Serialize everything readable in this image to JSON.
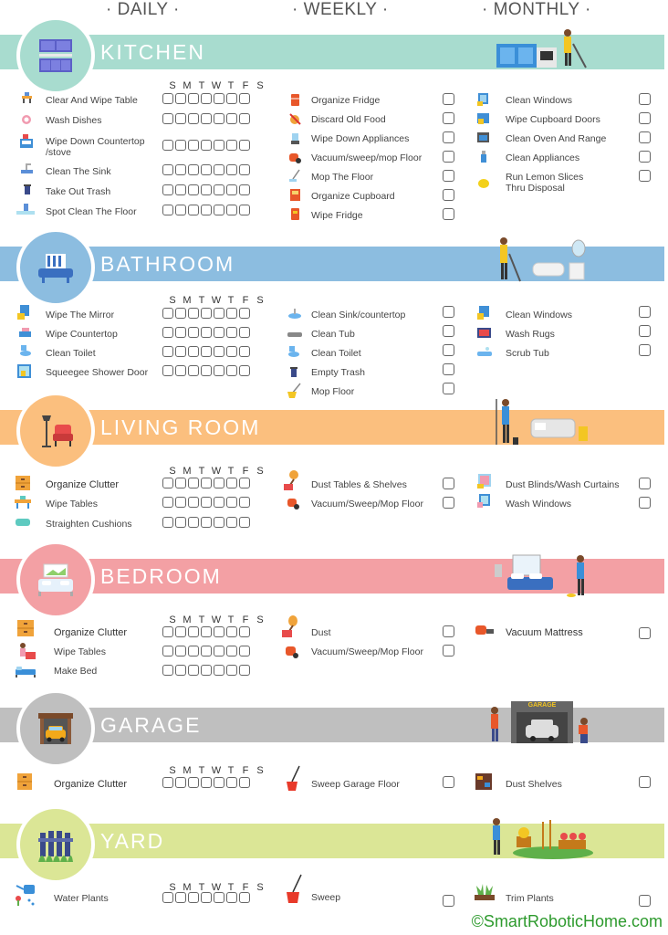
{
  "columns": {
    "daily": "· DAILY ·",
    "weekly": "· WEEKLY ·",
    "monthly": "· MONTHLY ·"
  },
  "days": [
    "S",
    "M",
    "T",
    "W",
    "T",
    "F",
    "S"
  ],
  "colors": {
    "kitchen": "#a8dccf",
    "bathroom": "#8cbde0",
    "living": "#fbbf7e",
    "bedroom": "#f3a0a4",
    "garage": "#bfbfbf",
    "yard": "#dbe696"
  },
  "sections": {
    "kitchen": {
      "title": "KITCHEN",
      "daily": [
        "Clear And Wipe Table",
        "Wash Dishes",
        "Wipe Down Countertop\n/stove",
        "Clean The Sink",
        "Take Out Trash",
        "Spot Clean The Floor"
      ],
      "weekly": [
        "Organize Fridge",
        "Discard Old Food",
        "Wipe Down Appliances",
        "Vacuum/sweep/mop Floor",
        "Mop The Floor",
        "Organize Cupboard",
        "Wipe Fridge"
      ],
      "monthly": [
        "Clean Windows",
        "Wipe Cupboard Doors",
        "Clean Oven And Range",
        "Clean Appliances",
        "Run Lemon Slices\nThru Disposal"
      ]
    },
    "bathroom": {
      "title": "BATHROOM",
      "daily": [
        "Wipe The Mirror",
        "Wipe Countertop",
        "Clean Toilet",
        "Squeegee Shower Door"
      ],
      "weekly": [
        "Clean Sink/countertop",
        "Clean Tub",
        "Clean Toilet",
        "Empty Trash",
        "Mop Floor"
      ],
      "monthly": [
        "Clean Windows",
        "Wash Rugs",
        "Scrub Tub"
      ]
    },
    "living": {
      "title": "LIVING ROOM",
      "daily": [
        "Organize Clutter",
        "Wipe Tables",
        "Straighten Cushions"
      ],
      "weekly": [
        "Dust Tables & Shelves",
        "Vacuum/Sweep/Mop Floor"
      ],
      "monthly": [
        "Dust Blinds/Wash Curtains",
        "Wash Windows"
      ]
    },
    "bedroom": {
      "title": "BEDROOM",
      "daily": [
        "Organize Clutter",
        "Wipe Tables",
        "Make Bed"
      ],
      "weekly": [
        "Dust",
        "Vacuum/Sweep/Mop Floor"
      ],
      "monthly": [
        "Vacuum Mattress"
      ]
    },
    "garage": {
      "title": "GARAGE",
      "daily": [
        "Organize Clutter"
      ],
      "weekly": [
        "Sweep Garage Floor"
      ],
      "monthly": [
        "Dust Shelves"
      ],
      "sign": "GARAGE"
    },
    "yard": {
      "title": "YARD",
      "daily": [
        "Water Plants"
      ],
      "weekly": [
        "Sweep"
      ],
      "monthly": [
        "Trim Plants"
      ]
    }
  },
  "footer": "©SmartRoboticHome.com"
}
